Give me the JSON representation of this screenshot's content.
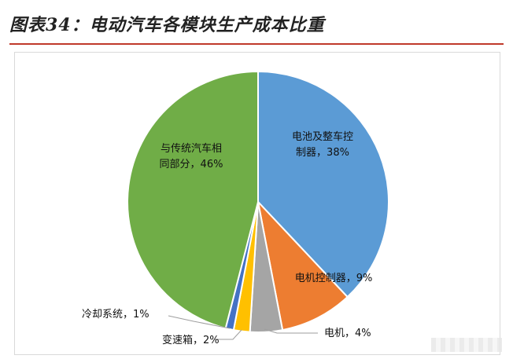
{
  "figure": {
    "title": "图表34：电动汽车各模块生产成本比重"
  },
  "chart_data": {
    "type": "pie",
    "title": "",
    "unit": "%",
    "slices": [
      {
        "label": "电池及整车控制器",
        "value": 38,
        "color": "#5b9bd5",
        "label_text": [
          "电池及整车控",
          "制器，38%"
        ]
      },
      {
        "label": "电机控制器",
        "value": 9,
        "color": "#ed7d31",
        "label_text": [
          "电机控制器，9%"
        ]
      },
      {
        "label": "电机",
        "value": 4,
        "color": "#a5a5a5",
        "label_text": [
          "电机，4%"
        ]
      },
      {
        "label": "变速箱",
        "value": 2,
        "color": "#ffc000",
        "label_text": [
          "变速箱，2%"
        ]
      },
      {
        "label": "冷却系统",
        "value": 1,
        "color": "#4472c4",
        "label_text": [
          "冷却系统，1%"
        ]
      },
      {
        "label": "与传统汽车相同部分",
        "value": 46,
        "color": "#70ad47",
        "label_text": [
          "与传统汽车相",
          "同部分，46%"
        ]
      }
    ]
  }
}
